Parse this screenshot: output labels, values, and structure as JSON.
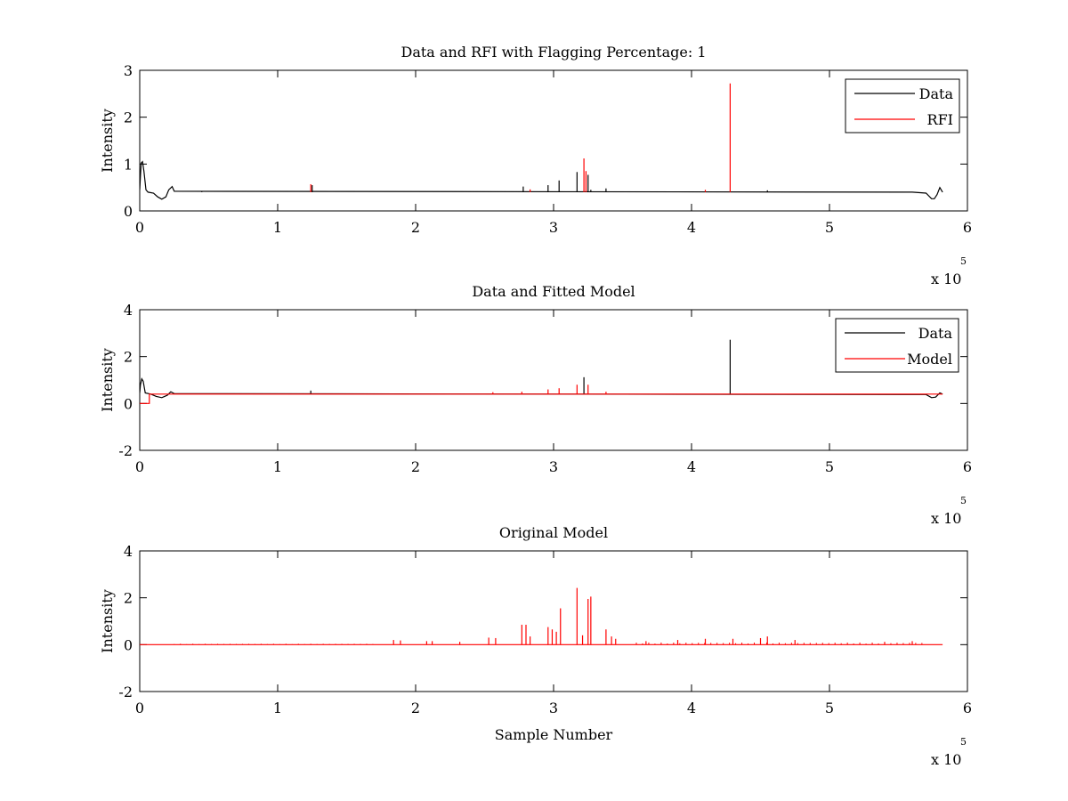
{
  "colors": {
    "data": "#000000",
    "rfi": "#ff0000",
    "model": "#ff0000",
    "background": "#ffffff"
  },
  "chart_data": [
    {
      "type": "line",
      "title": "Data and RFI with Flagging Percentage: 1",
      "xlabel": "",
      "ylabel": "Intensity",
      "xlim": [
        0,
        6
      ],
      "ylim": [
        0,
        3
      ],
      "xticks": [
        "0",
        "1",
        "2",
        "3",
        "4",
        "5",
        "6"
      ],
      "yticks": [
        "0",
        "1",
        "2",
        "3"
      ],
      "x_multiplier": {
        "base": "x 10",
        "exponent": "5"
      },
      "legend": {
        "placement": "top-right",
        "entries": [
          "Data",
          "RFI"
        ]
      },
      "series": [
        {
          "name": "Data",
          "color": "#000000",
          "baseline_segments": [
            [
              [
                0,
                0.45
              ],
              [
                0.005,
                0.75
              ],
              [
                0.01,
                1.02
              ],
              [
                0.02,
                1.05
              ],
              [
                0.03,
                0.85
              ],
              [
                0.045,
                0.45
              ],
              [
                0.06,
                0.4
              ],
              [
                0.1,
                0.38
              ],
              [
                0.13,
                0.3
              ],
              [
                0.16,
                0.25
              ],
              [
                0.19,
                0.3
              ],
              [
                0.21,
                0.45
              ],
              [
                0.235,
                0.52
              ],
              [
                0.25,
                0.42
              ],
              [
                5.6,
                0.4
              ],
              [
                5.7,
                0.38
              ],
              [
                5.74,
                0.26
              ],
              [
                5.76,
                0.26
              ],
              [
                5.78,
                0.35
              ],
              [
                5.8,
                0.5
              ],
              [
                5.81,
                0.45
              ],
              [
                5.82,
                0.4
              ]
            ]
          ],
          "spikes": [
            [
              0.45,
              0.42
            ],
            [
              1.25,
              0.55
            ],
            [
              2.78,
              0.52
            ],
            [
              2.96,
              0.55
            ],
            [
              3.04,
              0.65
            ],
            [
              3.17,
              0.83
            ],
            [
              3.25,
              0.77
            ],
            [
              3.27,
              0.45
            ],
            [
              3.38,
              0.48
            ],
            [
              4.55,
              0.44
            ]
          ]
        },
        {
          "name": "RFI",
          "color": "#ff0000",
          "baseline_segments": [],
          "spikes": [
            [
              1.24,
              0.57
            ],
            [
              2.83,
              0.46
            ],
            [
              3.22,
              1.12
            ],
            [
              3.235,
              0.85
            ],
            [
              4.1,
              0.45
            ],
            [
              4.28,
              2.72
            ]
          ]
        }
      ]
    },
    {
      "type": "line",
      "title": "Data and Fitted Model",
      "xlabel": "",
      "ylabel": "Intensity",
      "xlim": [
        0,
        6
      ],
      "ylim": [
        -2,
        4
      ],
      "xticks": [
        "0",
        "1",
        "2",
        "3",
        "4",
        "5",
        "6"
      ],
      "yticks": [
        "-2",
        "0",
        "2",
        "4"
      ],
      "x_multiplier": {
        "base": "x 10",
        "exponent": "5"
      },
      "legend": {
        "placement": "top-right",
        "entries": [
          "Data",
          "Model"
        ]
      },
      "series": [
        {
          "name": "Data",
          "color": "#000000",
          "baseline_segments": [
            [
              [
                0,
                0.45
              ],
              [
                0.005,
                0.8
              ],
              [
                0.015,
                1.05
              ],
              [
                0.025,
                0.95
              ],
              [
                0.04,
                0.45
              ],
              [
                0.08,
                0.4
              ],
              [
                0.12,
                0.3
              ],
              [
                0.16,
                0.25
              ],
              [
                0.2,
                0.35
              ],
              [
                0.225,
                0.5
              ],
              [
                0.25,
                0.42
              ],
              [
                5.7,
                0.38
              ],
              [
                5.74,
                0.25
              ],
              [
                5.77,
                0.27
              ],
              [
                5.8,
                0.45
              ],
              [
                5.82,
                0.4
              ]
            ]
          ],
          "spikes": [
            [
              4.28,
              2.72
            ],
            [
              3.22,
              1.12
            ],
            [
              1.24,
              0.55
            ]
          ]
        },
        {
          "name": "Model",
          "color": "#ff0000",
          "baseline_segments": [
            [
              [
                0,
                0.0
              ],
              [
                0.07,
                0.0
              ],
              [
                0.07,
                0.4
              ],
              [
                5.82,
                0.4
              ]
            ]
          ],
          "spikes": [
            [
              2.77,
              0.5
            ],
            [
              2.96,
              0.6
            ],
            [
              3.04,
              0.65
            ],
            [
              3.17,
              0.8
            ],
            [
              3.25,
              0.8
            ],
            [
              3.38,
              0.5
            ],
            [
              2.56,
              0.48
            ]
          ]
        }
      ]
    },
    {
      "type": "line",
      "title": "Original Model",
      "xlabel": "Sample Number",
      "ylabel": "Intensity",
      "xlim": [
        0,
        6
      ],
      "ylim": [
        -2,
        4
      ],
      "xticks": [
        "0",
        "1",
        "2",
        "3",
        "4",
        "5",
        "6"
      ],
      "yticks": [
        "-2",
        "0",
        "2",
        "4"
      ],
      "x_multiplier": {
        "base": "x 10",
        "exponent": "5"
      },
      "legend": null,
      "series": [
        {
          "color": "#ff0000",
          "baseline_segments": [
            [
              [
                0,
                0.0
              ],
              [
                5.82,
                0.0
              ]
            ]
          ],
          "spikes": [
            [
              1.84,
              0.2
            ],
            [
              1.89,
              0.18
            ],
            [
              2.08,
              0.15
            ],
            [
              2.12,
              0.15
            ],
            [
              2.32,
              0.12
            ],
            [
              2.53,
              0.3
            ],
            [
              2.58,
              0.28
            ],
            [
              2.77,
              0.85
            ],
            [
              2.8,
              0.85
            ],
            [
              2.83,
              0.35
            ],
            [
              2.96,
              0.75
            ],
            [
              2.99,
              0.65
            ],
            [
              3.02,
              0.55
            ],
            [
              3.05,
              1.55
            ],
            [
              3.17,
              2.42
            ],
            [
              3.21,
              0.4
            ],
            [
              3.25,
              1.95
            ],
            [
              3.27,
              2.05
            ],
            [
              3.38,
              0.65
            ],
            [
              3.42,
              0.35
            ],
            [
              3.45,
              0.25
            ],
            [
              3.67,
              0.15
            ],
            [
              3.9,
              0.2
            ],
            [
              4.1,
              0.25
            ],
            [
              4.3,
              0.25
            ],
            [
              4.5,
              0.28
            ],
            [
              4.55,
              0.35
            ],
            [
              4.75,
              0.2
            ],
            [
              5.4,
              0.12
            ],
            [
              5.6,
              0.15
            ]
          ],
          "small_spike_ranges": [
            [
              0.25,
              1.7,
              0.04
            ],
            [
              3.6,
              5.7,
              0.09
            ]
          ]
        }
      ]
    }
  ]
}
